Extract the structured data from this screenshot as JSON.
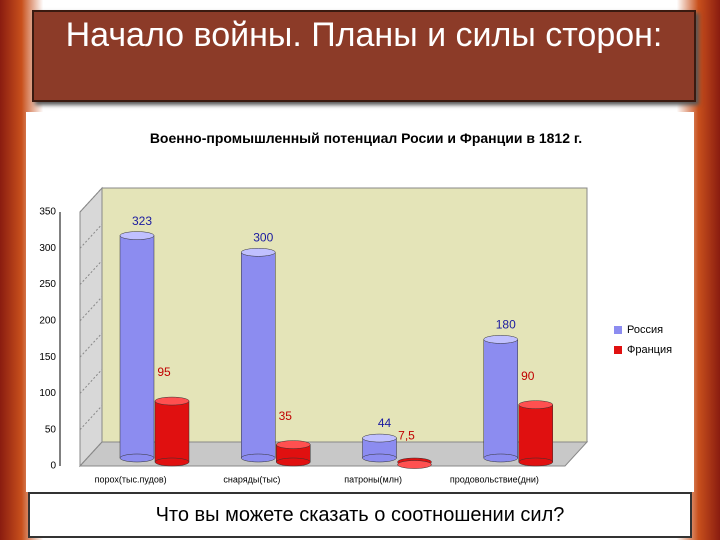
{
  "slide_title": "Начало войны. Планы и силы сторон:",
  "question": "Что вы можете сказать о соотношении сил?",
  "chart_data": {
    "type": "bar",
    "title": "Военно-промышленный потенциал Росии и Франции в 1812 г.",
    "categories": [
      "порох(тыс.пудов)",
      "снаряды(тыс)",
      "патроны(млн)",
      "продовольствие(дни)"
    ],
    "series": [
      {
        "name": "Россия",
        "color": "#8c8cf0",
        "values": [
          323,
          300,
          44,
          180
        ]
      },
      {
        "name": "Франция",
        "color": "#e01010",
        "values": [
          95,
          35,
          7.5,
          90
        ],
        "value_labels": [
          "95",
          "35",
          "7,5",
          "90"
        ]
      }
    ],
    "ylim": [
      0,
      350
    ],
    "yticks": [
      0,
      50,
      100,
      150,
      200,
      250,
      300,
      350
    ],
    "legend": "right"
  }
}
